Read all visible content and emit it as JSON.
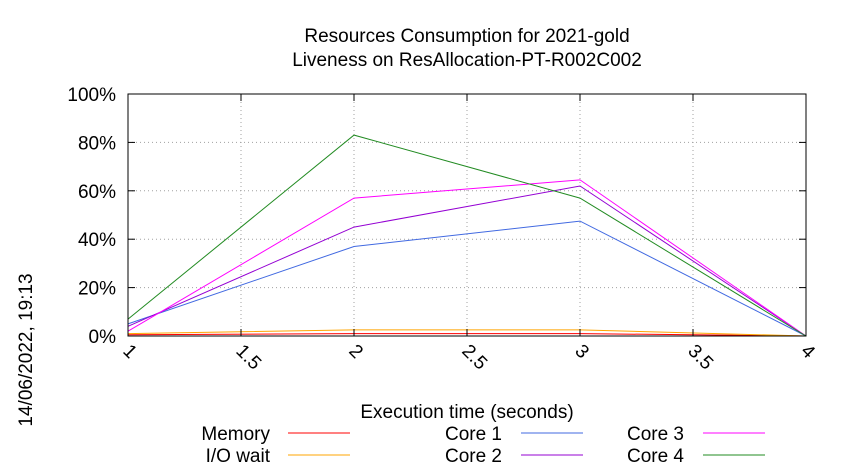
{
  "chart_data": {
    "type": "line",
    "title": [
      "Resources Consumption for 2021-gold",
      "Liveness on ResAllocation-PT-R002C002"
    ],
    "xlabel": "Execution time (seconds)",
    "ylabel": "",
    "side_label": "14/06/2022, 19:13",
    "xlim": [
      1,
      4
    ],
    "ylim": [
      0,
      100
    ],
    "x_ticks": [
      "1",
      "1.5",
      "2",
      "2.5",
      "3",
      "3.5",
      "4"
    ],
    "y_ticks": [
      "0%",
      "20%",
      "40%",
      "60%",
      "80%",
      "100%"
    ],
    "grid": true,
    "legend_position": "bottom",
    "series": [
      {
        "name": "Memory",
        "color": "#ff0000",
        "x": [
          1,
          2,
          3,
          4
        ],
        "values": [
          0.5,
          1.0,
          1.0,
          0
        ]
      },
      {
        "name": "I/O wait",
        "color": "#ffa500",
        "x": [
          1,
          2,
          3,
          4
        ],
        "values": [
          1.0,
          2.5,
          2.5,
          0
        ]
      },
      {
        "name": "Core 1",
        "color": "#4169e1",
        "x": [
          1,
          2,
          3,
          4
        ],
        "values": [
          5,
          37,
          47.5,
          0
        ]
      },
      {
        "name": "Core 2",
        "color": "#9400d3",
        "x": [
          1,
          2,
          3,
          4
        ],
        "values": [
          4,
          45,
          62,
          0
        ]
      },
      {
        "name": "Core 3",
        "color": "#ff00ff",
        "x": [
          1,
          2,
          3,
          4
        ],
        "values": [
          2,
          57,
          64.5,
          0
        ]
      },
      {
        "name": "Core 4",
        "color": "#228b22",
        "x": [
          1,
          2,
          3,
          4
        ],
        "values": [
          7,
          83,
          57,
          0
        ]
      }
    ]
  }
}
